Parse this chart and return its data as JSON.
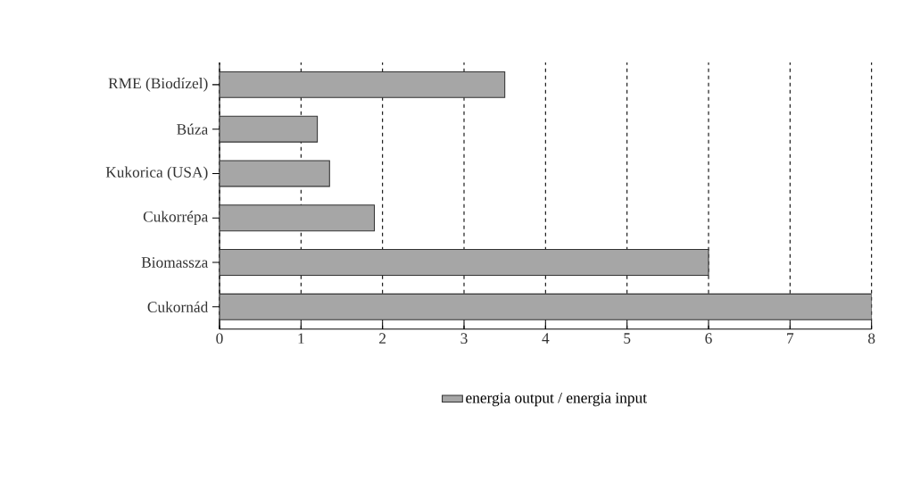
{
  "chart_data": {
    "type": "bar",
    "orientation": "horizontal",
    "categories": [
      "RME (Biodízel)",
      "Búza",
      "Kukorica (USA)",
      "Cukorrépa",
      "Biomassza",
      "Cukornád"
    ],
    "series": [
      {
        "name": "energia output / energia input",
        "color": "#a6a6a6",
        "values": [
          3.5,
          1.2,
          1.35,
          1.9,
          6,
          8
        ]
      }
    ],
    "xlim": [
      0,
      8
    ],
    "xticks": [
      0,
      1,
      2,
      3,
      4,
      5,
      6,
      7,
      8
    ],
    "grid": "x",
    "line_style": "dashed",
    "legend": "bottom"
  }
}
